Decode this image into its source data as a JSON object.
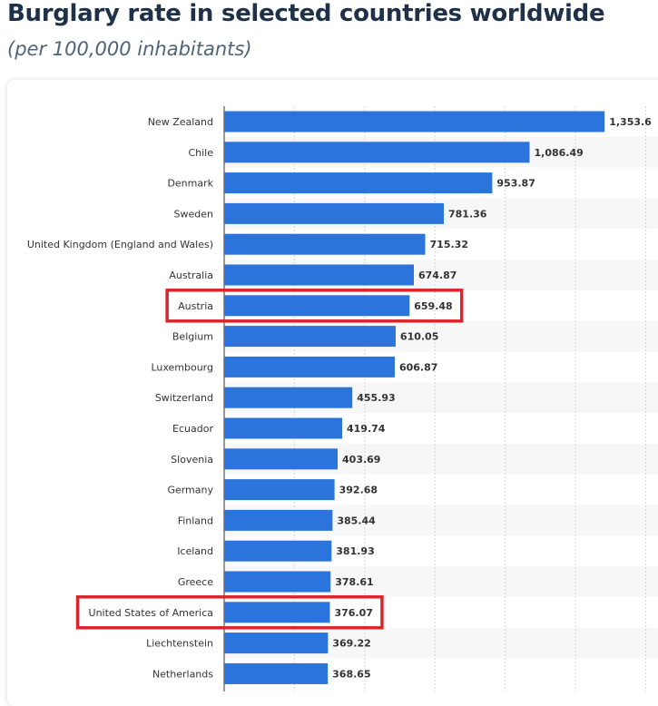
{
  "header": {
    "title": "Burglary rate in selected countries worldwide",
    "subtitle": "(per 100,000 inhabitants)"
  },
  "chart_data": {
    "type": "bar",
    "orientation": "horizontal",
    "categories": [
      "New Zealand",
      "Chile",
      "Denmark",
      "Sweden",
      "United Kingdom (England and Wales)",
      "Australia",
      "Austria",
      "Belgium",
      "Luxembourg",
      "Switzerland",
      "Ecuador",
      "Slovenia",
      "Germany",
      "Finland",
      "Iceland",
      "Greece",
      "United States of America",
      "Liechtenstein",
      "Netherlands"
    ],
    "values": [
      1353.6,
      1086.49,
      953.87,
      781.36,
      715.32,
      674.87,
      659.48,
      610.05,
      606.87,
      455.93,
      419.74,
      403.69,
      392.68,
      385.44,
      381.93,
      378.61,
      376.07,
      369.22,
      368.65
    ],
    "value_labels": [
      "1,353.6",
      "1,086.49",
      "953.87",
      "781.36",
      "715.32",
      "674.87",
      "659.48",
      "610.05",
      "606.87",
      "455.93",
      "419.74",
      "403.69",
      "392.68",
      "385.44",
      "381.93",
      "378.61",
      "376.07",
      "369.22",
      "368.65"
    ],
    "highlighted": [
      "Austria",
      "United States of America"
    ],
    "xlim": [
      0,
      1500
    ],
    "grid": true,
    "bar_color": "#2a74db",
    "highlight_color": "#d9262c",
    "stripe_color": "#f7f7f7"
  }
}
